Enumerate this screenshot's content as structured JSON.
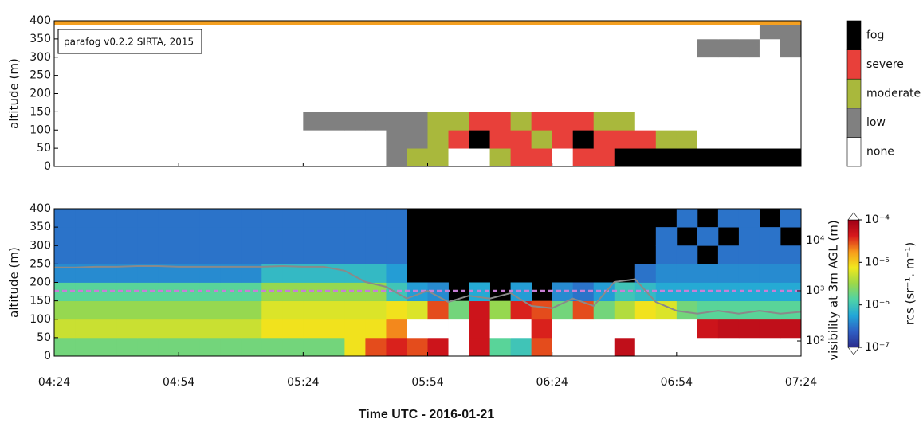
{
  "chart_data": [
    {
      "type": "heatmap",
      "annotation": "parafog v0.2.2 SIRTA, 2015",
      "ylabel": "altitude (m)",
      "x": [
        "04:24",
        "04:29",
        "04:34",
        "04:39",
        "04:44",
        "04:49",
        "04:54",
        "04:59",
        "05:04",
        "05:09",
        "05:14",
        "05:19",
        "05:24",
        "05:29",
        "05:34",
        "05:39",
        "05:44",
        "05:49",
        "05:54",
        "05:59",
        "06:04",
        "06:09",
        "06:14",
        "06:19",
        "06:24",
        "06:29",
        "06:34",
        "06:39",
        "06:44",
        "06:49",
        "06:54",
        "06:59",
        "07:04",
        "07:09",
        "07:14",
        "07:19"
      ],
      "xlim": [
        "04:24",
        "07:24"
      ],
      "y": [
        0,
        50,
        100,
        150,
        200,
        250,
        300,
        350
      ],
      "ylim": [
        0,
        400
      ],
      "yticks": [
        0,
        50,
        100,
        150,
        200,
        250,
        300,
        350,
        400
      ],
      "classes": {
        "labels": [
          "none",
          "low",
          "moderate",
          "severe",
          "fog"
        ],
        "colors": [
          "#ffffff",
          "#808080",
          "#a9b83c",
          "#e8403a",
          "#000000"
        ]
      },
      "z": [
        [
          0,
          0,
          0,
          0,
          0,
          0,
          0,
          0,
          0,
          0,
          0,
          0,
          0,
          0,
          0,
          0,
          1,
          2,
          2,
          0,
          0,
          2,
          3,
          3,
          0,
          3,
          3,
          4,
          4,
          4,
          4,
          4,
          4,
          4,
          4,
          4
        ],
        [
          0,
          0,
          0,
          0,
          0,
          0,
          0,
          0,
          0,
          0,
          0,
          0,
          0,
          0,
          0,
          0,
          1,
          1,
          2,
          3,
          4,
          3,
          3,
          2,
          3,
          4,
          3,
          3,
          3,
          2,
          2,
          0,
          0,
          0,
          0,
          0
        ],
        [
          0,
          0,
          0,
          0,
          0,
          0,
          0,
          0,
          0,
          0,
          0,
          0,
          1,
          1,
          1,
          1,
          1,
          1,
          2,
          2,
          3,
          3,
          2,
          3,
          3,
          3,
          2,
          2,
          0,
          0,
          0,
          0,
          0,
          0,
          0,
          0
        ],
        [
          0,
          0,
          0,
          0,
          0,
          0,
          0,
          0,
          0,
          0,
          0,
          0,
          0,
          0,
          0,
          0,
          0,
          0,
          0,
          0,
          0,
          0,
          0,
          0,
          0,
          0,
          0,
          0,
          0,
          0,
          0,
          0,
          0,
          0,
          0,
          0
        ],
        [
          0,
          0,
          0,
          0,
          0,
          0,
          0,
          0,
          0,
          0,
          0,
          0,
          0,
          0,
          0,
          0,
          0,
          0,
          0,
          0,
          0,
          0,
          0,
          0,
          0,
          0,
          0,
          0,
          0,
          0,
          0,
          0,
          0,
          0,
          0,
          0
        ],
        [
          0,
          0,
          0,
          0,
          0,
          0,
          0,
          0,
          0,
          0,
          0,
          0,
          0,
          0,
          0,
          0,
          0,
          0,
          0,
          0,
          0,
          0,
          0,
          0,
          0,
          0,
          0,
          0,
          0,
          0,
          0,
          0,
          0,
          0,
          0,
          0
        ],
        [
          0,
          0,
          0,
          0,
          0,
          0,
          0,
          0,
          0,
          0,
          0,
          0,
          0,
          0,
          0,
          0,
          0,
          0,
          0,
          0,
          0,
          0,
          0,
          0,
          0,
          0,
          0,
          0,
          0,
          0,
          0,
          1,
          1,
          1,
          0,
          1
        ],
        [
          0,
          0,
          0,
          0,
          0,
          0,
          0,
          0,
          0,
          0,
          0,
          0,
          0,
          0,
          0,
          0,
          0,
          0,
          0,
          0,
          0,
          0,
          0,
          0,
          0,
          0,
          0,
          0,
          0,
          0,
          0,
          0,
          0,
          0,
          1,
          1
        ]
      ]
    },
    {
      "type": "heatmap",
      "ylabel": "altitude (m)",
      "xlabel": "Time UTC - 2016-01-21",
      "y2label": "visibility at 3m AGL (m)",
      "clabel": "rcs (sr⁻¹. m⁻¹)",
      "x": [
        "04:24",
        "04:29",
        "04:34",
        "04:39",
        "04:44",
        "04:49",
        "04:54",
        "04:59",
        "05:04",
        "05:09",
        "05:14",
        "05:19",
        "05:24",
        "05:29",
        "05:34",
        "05:39",
        "05:44",
        "05:49",
        "05:54",
        "05:59",
        "06:04",
        "06:09",
        "06:14",
        "06:19",
        "06:24",
        "06:29",
        "06:34",
        "06:39",
        "06:44",
        "06:49",
        "06:54",
        "06:59",
        "07:04",
        "07:09",
        "07:14",
        "07:19"
      ],
      "xlim": [
        "04:24",
        "07:24"
      ],
      "xticks": [
        "04:24",
        "04:54",
        "05:24",
        "05:54",
        "06:24",
        "06:54",
        "07:24"
      ],
      "y": [
        0,
        50,
        100,
        150,
        200,
        250,
        300,
        350
      ],
      "ylim": [
        0,
        400
      ],
      "yticks": [
        0,
        50,
        100,
        150,
        200,
        250,
        300,
        350,
        400
      ],
      "y2lim": [
        50,
        43000
      ],
      "y2log": true,
      "y2ticks": [
        {
          "value": 100,
          "label": "10²"
        },
        {
          "value": 1000,
          "label": "10³"
        },
        {
          "value": 10000,
          "label": "10⁴"
        }
      ],
      "clim": [
        1e-07,
        0.0001
      ],
      "clog": true,
      "cticks": [
        {
          "value": 1e-07,
          "label": "10⁻⁷"
        },
        {
          "value": 1e-06,
          "label": "10⁻⁶"
        },
        {
          "value": 1e-05,
          "label": "10⁻⁵"
        },
        {
          "value": 0.0001,
          "label": "10⁻⁴"
        }
      ],
      "colormap": [
        "#2b2c8c",
        "#2f5fc4",
        "#22a7d8",
        "#4fd3a6",
        "#9bd84a",
        "#f1e81d",
        "#f79a1c",
        "#d7191c",
        "#9e0016"
      ],
      "over_color": "#ffffff",
      "missing_color": "#000000",
      "z": [
        [
          2e-06,
          2e-06,
          2e-06,
          2e-06,
          2e-06,
          2e-06,
          2e-06,
          2e-06,
          2e-06,
          2e-06,
          2e-06,
          2e-06,
          2e-06,
          2e-06,
          8e-06,
          3e-05,
          4e-05,
          3e-05,
          5e-05,
          0.0003,
          5e-05,
          1.5e-06,
          1e-06,
          3e-05,
          0.0003,
          0.0003,
          0.0003,
          6e-05,
          0.0003,
          0.0003,
          0.0003,
          0.0003,
          0.0003,
          0.0003,
          0.0003,
          0.0003
        ],
        [
          5e-06,
          5e-06,
          5e-06,
          5e-06,
          5e-06,
          5e-06,
          5e-06,
          5e-06,
          5e-06,
          5e-06,
          8e-06,
          8e-06,
          8e-06,
          8e-06,
          8e-06,
          8e-06,
          2e-05,
          0.0003,
          0.0003,
          0.0003,
          5e-05,
          0.0003,
          0.0003,
          4e-05,
          0.0003,
          0.0003,
          0.0003,
          0.0003,
          0.0003,
          0.0003,
          0.0003,
          5e-05,
          6e-05,
          6e-05,
          6e-05,
          6e-05
        ],
        [
          3e-06,
          3e-06,
          3e-06,
          3e-06,
          3e-06,
          3e-06,
          3e-06,
          3e-06,
          3e-06,
          3e-06,
          6e-06,
          6e-06,
          6e-06,
          6e-06,
          6e-06,
          6e-06,
          8e-06,
          6e-06,
          3e-05,
          2e-06,
          5e-05,
          3e-06,
          4e-05,
          3e-05,
          2e-06,
          3e-05,
          2e-06,
          4e-06,
          8e-06,
          6e-06,
          2e-06,
          1.5e-06,
          1.5e-06,
          1.5e-06,
          1.5e-06,
          1.5e-06
        ],
        [
          1.5e-06,
          1.5e-06,
          1.5e-06,
          1.5e-06,
          1.5e-06,
          1.5e-06,
          1.5e-06,
          1.5e-06,
          1.5e-06,
          1.5e-06,
          3e-06,
          3e-06,
          3e-06,
          3e-06,
          3e-06,
          3e-06,
          1e-06,
          5e-07,
          4e-07,
          null,
          6e-07,
          null,
          5e-07,
          null,
          4e-07,
          3e-07,
          5e-07,
          1e-06,
          8e-07,
          6e-07,
          6e-07,
          6e-07,
          6e-07,
          6e-07,
          6e-07,
          6e-07
        ],
        [
          4e-07,
          4e-07,
          4e-07,
          4e-07,
          4e-07,
          4e-07,
          4e-07,
          4e-07,
          4e-07,
          4e-07,
          8e-07,
          8e-07,
          8e-07,
          8e-07,
          8e-07,
          8e-07,
          5e-07,
          null,
          null,
          null,
          null,
          null,
          null,
          null,
          null,
          null,
          null,
          null,
          3e-07,
          4e-07,
          4e-07,
          4e-07,
          4e-07,
          4e-07,
          4e-07,
          4e-07
        ],
        [
          3e-07,
          3e-07,
          3e-07,
          3e-07,
          3e-07,
          3e-07,
          3e-07,
          3e-07,
          3e-07,
          3e-07,
          3e-07,
          3e-07,
          3e-07,
          3e-07,
          3e-07,
          3e-07,
          3e-07,
          null,
          null,
          null,
          null,
          null,
          null,
          null,
          null,
          null,
          null,
          null,
          null,
          3e-07,
          3e-07,
          null,
          3e-07,
          3e-07,
          3e-07,
          3e-07
        ],
        [
          3e-07,
          3e-07,
          3e-07,
          3e-07,
          3e-07,
          3e-07,
          3e-07,
          3e-07,
          3e-07,
          3e-07,
          3e-07,
          3e-07,
          3e-07,
          3e-07,
          3e-07,
          3e-07,
          3e-07,
          null,
          null,
          null,
          null,
          null,
          null,
          null,
          null,
          null,
          null,
          null,
          null,
          3e-07,
          null,
          3e-07,
          null,
          3e-07,
          3e-07,
          null
        ],
        [
          3e-07,
          3e-07,
          3e-07,
          3e-07,
          3e-07,
          3e-07,
          3e-07,
          3e-07,
          3e-07,
          3e-07,
          3e-07,
          3e-07,
          3e-07,
          3e-07,
          3e-07,
          3e-07,
          3e-07,
          null,
          null,
          null,
          null,
          null,
          null,
          null,
          null,
          null,
          null,
          null,
          null,
          null,
          3e-07,
          null,
          3e-07,
          3e-07,
          null,
          3e-07
        ]
      ],
      "threshold": 1000,
      "threshold_color": "#c77fd6",
      "line": {
        "axis": "y2",
        "color": "#8a8a8a",
        "x": [
          "04:24",
          "04:29",
          "04:34",
          "04:39",
          "04:44",
          "04:49",
          "04:54",
          "04:59",
          "05:04",
          "05:09",
          "05:14",
          "05:19",
          "05:24",
          "05:29",
          "05:34",
          "05:39",
          "05:44",
          "05:49",
          "05:54",
          "05:59",
          "06:04",
          "06:09",
          "06:14",
          "06:19",
          "06:24",
          "06:29",
          "06:34",
          "06:39",
          "06:44",
          "06:49",
          "06:54",
          "06:59",
          "07:04",
          "07:09",
          "07:14",
          "07:19",
          "07:24"
        ],
        "values": [
          2900,
          2900,
          3000,
          3000,
          3100,
          3100,
          3000,
          3000,
          3000,
          3000,
          3000,
          3100,
          3000,
          3000,
          2500,
          1500,
          1200,
          700,
          1000,
          600,
          800,
          700,
          900,
          500,
          450,
          700,
          500,
          1500,
          1700,
          600,
          400,
          350,
          400,
          350,
          400,
          350,
          380
        ]
      }
    }
  ]
}
